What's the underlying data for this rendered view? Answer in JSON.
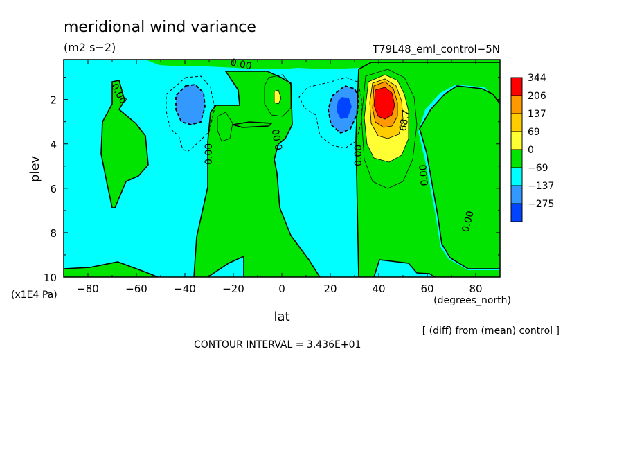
{
  "chart_data": {
    "type": "heatmap",
    "title": "meridional wind variance",
    "units": "(m2 s−2)",
    "run_label": "T79L48_eml_control−5N",
    "xlabel": "lat",
    "x_units": "(degrees_north)",
    "ylabel": "plev",
    "y_units": "(x1E4 Pa)",
    "xlim": [
      -90,
      90
    ],
    "ylim": [
      10,
      0.2
    ],
    "x_ticks": [
      -80,
      -60,
      -40,
      -20,
      0,
      20,
      40,
      60,
      80
    ],
    "y_ticks": [
      2,
      4,
      6,
      8,
      10
    ],
    "note": "[ (diff) from (mean) control ]",
    "contour_interval": "CONTOUR INTERVAL = 3.436E+01",
    "contour_labels": [
      "0.00",
      "0.00",
      "0.00",
      "0.00",
      "0.00",
      "0.00",
      "68.7",
      "0.00",
      "0.00"
    ],
    "colorbar": {
      "labels": [
        "344",
        "206",
        "137",
        "69",
        "0",
        "−69",
        "−137",
        "−275"
      ],
      "colors": [
        "#ff0000",
        "#ff9900",
        "#ffcc00",
        "#ffff33",
        "#00e400",
        "#00ffff",
        "#3399ff",
        "#0044ff"
      ]
    },
    "field_colors": {
      "neg_strong": "#0044ff",
      "neg_mid": "#3399ff",
      "neg_weak": "#00ffff",
      "pos_weak": "#00e400",
      "pos_69": "#ffff33",
      "pos_137": "#ffcc00",
      "pos_206": "#ff9900",
      "pos_344": "#ff0000"
    }
  }
}
